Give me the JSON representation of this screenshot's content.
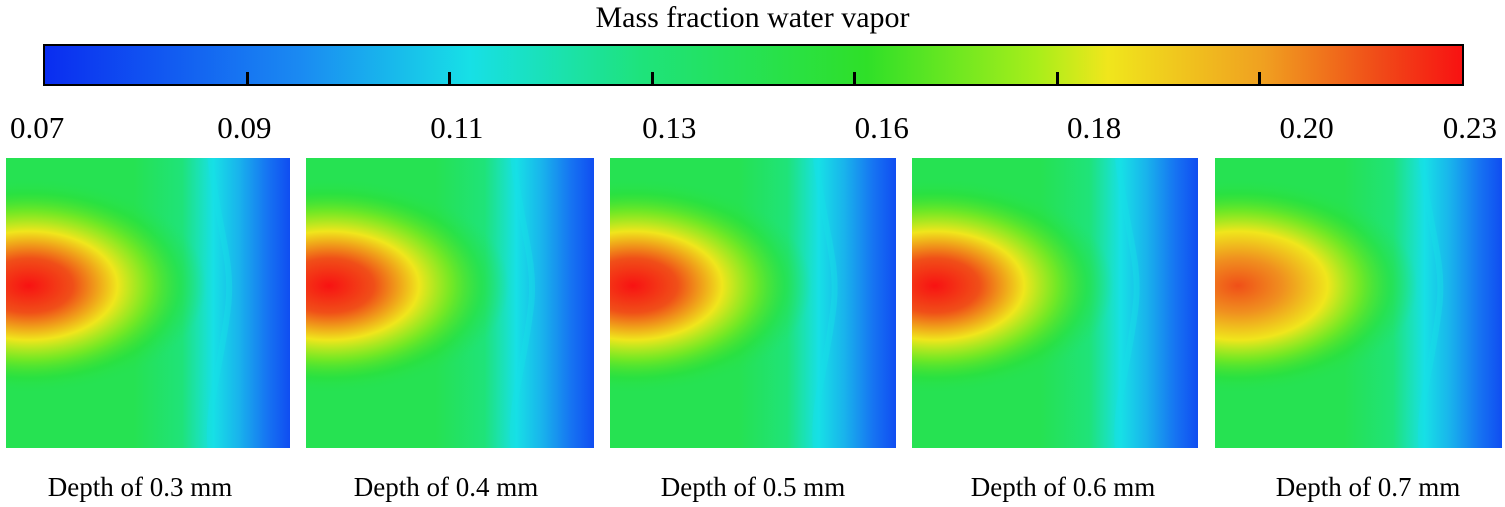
{
  "chart_data": {
    "type": "heatmap",
    "title": "Mass fraction water vapor",
    "colorbar": {
      "min": 0.07,
      "max": 0.23,
      "tick_labels": [
        "0.07",
        "0.09",
        "0.11",
        "0.13",
        "0.16",
        "0.18",
        "0.20",
        "0.23"
      ],
      "colors": [
        "#0a2df0",
        "#1a8af2",
        "#17e0e6",
        "#1ee37c",
        "#2fe028",
        "#a8ee1a",
        "#f0e61c",
        "#f0a020",
        "#f04c18",
        "#f81212"
      ]
    },
    "panels": [
      {
        "label": "Depth of 0.3 mm",
        "depth_mm": 0.3,
        "peak_value": 0.23
      },
      {
        "label": "Depth of 0.4 mm",
        "depth_mm": 0.4,
        "peak_value": 0.23
      },
      {
        "label": "Depth of 0.5 mm",
        "depth_mm": 0.5,
        "peak_value": 0.23
      },
      {
        "label": "Depth of 0.6 mm",
        "depth_mm": 0.6,
        "peak_value": 0.23
      },
      {
        "label": "Depth of 0.7 mm",
        "depth_mm": 0.7,
        "peak_value": 0.22
      }
    ]
  }
}
